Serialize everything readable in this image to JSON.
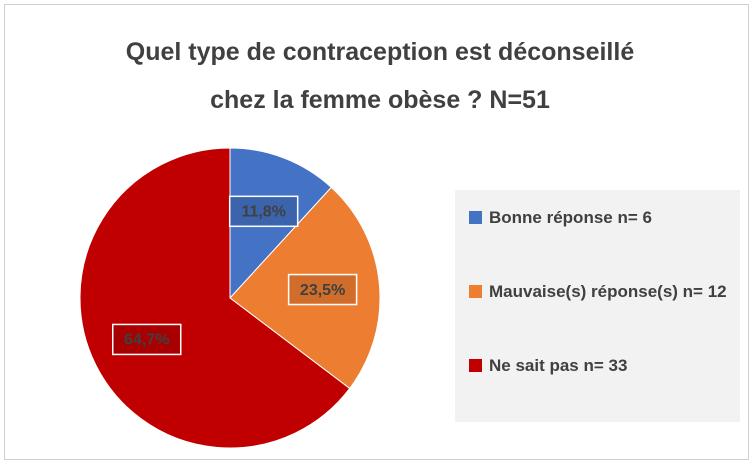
{
  "chart_data": {
    "type": "pie",
    "title": "Quel type de contraception est déconseillé chez la femme obèse ? N=51",
    "categories": [
      "Bonne réponse n= 6",
      "Mauvaise(s) réponse(s) n= 12",
      "Ne sait pas n= 33"
    ],
    "values": [
      11.8,
      23.5,
      64.7
    ],
    "value_labels": [
      "11,8%",
      "23,5%",
      "64,7%"
    ],
    "colors": [
      "#4472c4",
      "#ed7d31",
      "#c00000"
    ],
    "legend": "right"
  }
}
